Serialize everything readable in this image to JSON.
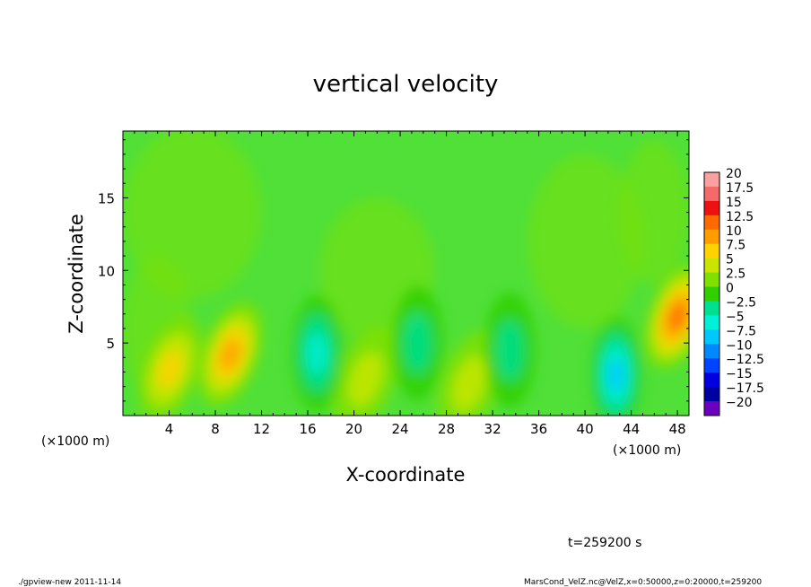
{
  "chart_data": {
    "type": "heatmap",
    "title": "vertical velocity",
    "xlabel": "X-coordinate",
    "ylabel": "Z-coordinate",
    "x_unit_left": "(×1000 m)",
    "x_unit_right": "(×1000 m)",
    "xlim": [
      0,
      49
    ],
    "ylim": [
      0,
      19.6
    ],
    "x_ticks": [
      "4",
      "8",
      "12",
      "16",
      "20",
      "24",
      "28",
      "32",
      "36",
      "40",
      "44",
      "48"
    ],
    "x_tick_values": [
      4,
      8,
      12,
      16,
      20,
      24,
      28,
      32,
      36,
      40,
      44,
      48
    ],
    "y_ticks": [
      "5",
      "10",
      "15"
    ],
    "y_tick_values": [
      5,
      10,
      15
    ],
    "colorbar": {
      "levels": [
        "20",
        "17.5",
        "15",
        "12.5",
        "10",
        "7.5",
        "5",
        "2.5",
        "0",
        "−2.5",
        "−5",
        "−7.5",
        "−10",
        "−12.5",
        "−15",
        "−17.5",
        "−20"
      ],
      "colors": [
        "#f9a0a0",
        "#f46a6a",
        "#ee1111",
        "#ff6a00",
        "#ff9c00",
        "#ffd300",
        "#c8e600",
        "#80e000",
        "#30d000",
        "#00e090",
        "#00f0d8",
        "#00c8ff",
        "#0088ff",
        "#0044ff",
        "#0000e0",
        "#0000a0",
        "#6a00c0"
      ]
    },
    "features": [
      {
        "kind": "updraft",
        "x": 9.3,
        "z": 4.2,
        "value": 10
      },
      {
        "kind": "updraft",
        "x": 4.1,
        "z": 3.2,
        "value": 7
      },
      {
        "kind": "updraft",
        "x": 48.0,
        "z": 6.8,
        "value": 11
      },
      {
        "kind": "updraft",
        "x": 21.0,
        "z": 2.5,
        "value": 4
      },
      {
        "kind": "updraft",
        "x": 30.0,
        "z": 2.2,
        "value": 3
      },
      {
        "kind": "downdraft",
        "x": 16.8,
        "z": 4.3,
        "value": -7
      },
      {
        "kind": "downdraft",
        "x": 42.7,
        "z": 2.8,
        "value": -8
      },
      {
        "kind": "downdraft",
        "x": 25.5,
        "z": 5.0,
        "value": -5
      },
      {
        "kind": "downdraft",
        "x": 33.5,
        "z": 4.5,
        "value": -5
      }
    ],
    "time_label": "t=259200 s",
    "grid": false,
    "legend": "right"
  },
  "footer": {
    "left": "./gpview-new  2011-11-14",
    "right": "MarsCond_VelZ.nc@VelZ,x=0:50000,z=0:20000,t=259200"
  }
}
